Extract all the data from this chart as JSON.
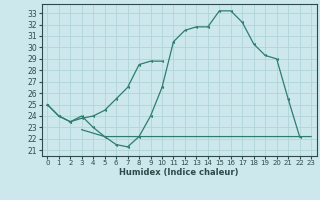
{
  "xlabel": "Humidex (Indice chaleur)",
  "bg_color": "#cce8ec",
  "grid_color": "#b0d4d8",
  "line_color": "#2e7d6e",
  "spine_color": "#2e4a4a",
  "xlim": [
    -0.5,
    23.5
  ],
  "ylim": [
    20.5,
    33.8
  ],
  "yticks": [
    21,
    22,
    23,
    24,
    25,
    26,
    27,
    28,
    29,
    30,
    31,
    32,
    33
  ],
  "xticks": [
    0,
    1,
    2,
    3,
    4,
    5,
    6,
    7,
    8,
    9,
    10,
    11,
    12,
    13,
    14,
    15,
    16,
    17,
    18,
    19,
    20,
    21,
    22,
    23
  ],
  "line1_x": [
    0,
    1,
    2,
    3,
    4,
    5,
    6,
    7,
    8,
    9,
    10,
    11,
    12,
    13,
    14,
    15,
    16,
    17,
    18,
    19,
    20,
    21,
    22
  ],
  "line1_y": [
    25.0,
    24.0,
    23.5,
    24.0,
    23.0,
    22.2,
    21.5,
    21.3,
    22.2,
    24.0,
    26.5,
    30.5,
    31.5,
    31.8,
    31.8,
    33.2,
    33.2,
    32.2,
    30.3,
    29.3,
    29.0,
    25.5,
    22.2
  ],
  "line2_x": [
    0,
    1,
    2,
    3,
    4,
    5,
    6,
    7,
    8,
    9,
    10
  ],
  "line2_y": [
    25.0,
    24.0,
    23.5,
    23.8,
    24.0,
    24.5,
    25.5,
    26.5,
    28.5,
    28.8,
    28.8
  ],
  "line3_x": [
    3,
    4,
    5,
    6,
    7,
    8,
    9,
    10,
    11,
    12,
    13,
    14,
    15,
    16,
    17,
    18,
    19,
    20,
    21,
    22,
    23
  ],
  "line3_y": [
    22.8,
    22.5,
    22.2,
    22.2,
    22.2,
    22.2,
    22.2,
    22.2,
    22.2,
    22.2,
    22.2,
    22.2,
    22.2,
    22.2,
    22.2,
    22.2,
    22.2,
    22.2,
    22.2,
    22.2,
    22.2
  ]
}
